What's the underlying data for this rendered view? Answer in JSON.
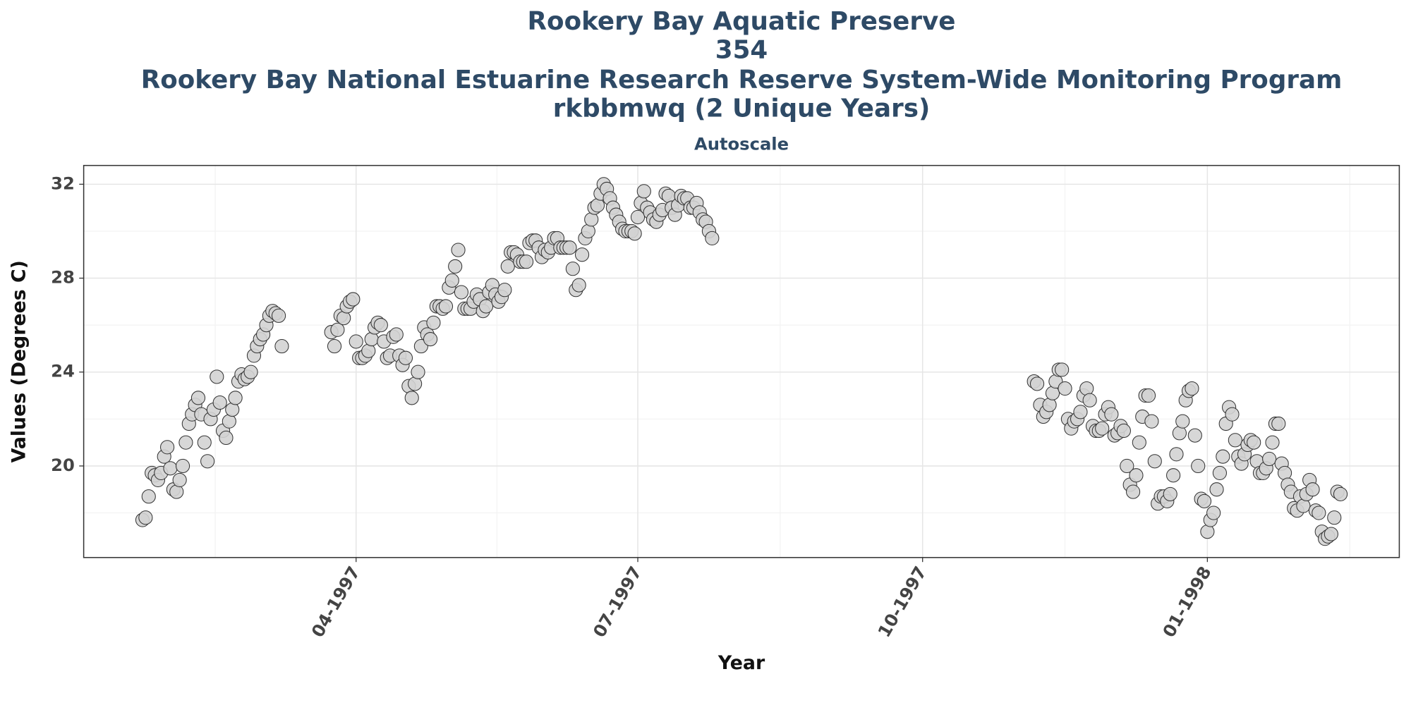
{
  "chart_data": {
    "type": "scatter",
    "title": [
      "Rookery Bay Aquatic Preserve",
      "354",
      "Rookery Bay National Estuarine Research Reserve System-Wide Monitoring Program",
      "rkbbmwq (2 Unique Years)"
    ],
    "subtitle": "Autoscale",
    "x_label": "Year",
    "y_label": "Values (Degrees C)",
    "color": "#d3d3d3",
    "grid": true,
    "xlim": [
      9864,
      10289
    ],
    "xticks": [
      {
        "value": 9952,
        "label": "04-1997"
      },
      {
        "value": 10043,
        "label": "07-1997"
      },
      {
        "value": 10135,
        "label": "10-1997"
      },
      {
        "value": 10227,
        "label": "01-1998"
      }
    ],
    "ylim": [
      16.1,
      32.8
    ],
    "yticks": [
      20,
      24,
      28,
      32
    ],
    "x": [
      9883,
      9884,
      9885,
      9886,
      9887,
      9888,
      9889,
      9890,
      9891,
      9892,
      9893,
      9894,
      9895,
      9896,
      9897,
      9898,
      9899,
      9900,
      9901,
      9902,
      9903,
      9904,
      9905,
      9906,
      9907,
      9908,
      9909,
      9910,
      9911,
      9912,
      9913,
      9914,
      9915,
      9916,
      9917,
      9918,
      9919,
      9920,
      9921,
      9922,
      9923,
      9924,
      9925,
      9926,
      9927,
      9928,
      9944,
      9945,
      9946,
      9947,
      9948,
      9949,
      9950,
      9951,
      9952,
      9953,
      9954,
      9955,
      9956,
      9957,
      9958,
      9959,
      9960,
      9961,
      9962,
      9963,
      9964,
      9965,
      9966,
      9967,
      9968,
      9969,
      9970,
      9971,
      9972,
      9973,
      9974,
      9975,
      9976,
      9977,
      9978,
      9979,
      9980,
      9981,
      9982,
      9983,
      9984,
      9985,
      9986,
      9987,
      9988,
      9989,
      9990,
      9991,
      9992,
      9993,
      9994,
      9995,
      9996,
      9997,
      9998,
      9999,
      10000,
      10001,
      10002,
      10003,
      10004,
      10005,
      10006,
      10007,
      10008,
      10009,
      10010,
      10011,
      10012,
      10013,
      10014,
      10015,
      10016,
      10017,
      10018,
      10019,
      10020,
      10021,
      10022,
      10023,
      10024,
      10025,
      10026,
      10027,
      10028,
      10029,
      10030,
      10031,
      10032,
      10033,
      10034,
      10035,
      10036,
      10037,
      10038,
      10039,
      10040,
      10041,
      10042,
      10043,
      10044,
      10045,
      10046,
      10047,
      10048,
      10049,
      10050,
      10051,
      10052,
      10053,
      10054,
      10055,
      10056,
      10057,
      10058,
      10059,
      10060,
      10061,
      10062,
      10063,
      10064,
      10065,
      10066,
      10067,
      10171,
      10172,
      10173,
      10174,
      10175,
      10176,
      10177,
      10178,
      10179,
      10180,
      10181,
      10182,
      10183,
      10184,
      10185,
      10186,
      10187,
      10188,
      10189,
      10190,
      10191,
      10192,
      10193,
      10194,
      10195,
      10196,
      10197,
      10198,
      10199,
      10200,
      10201,
      10202,
      10203,
      10204,
      10205,
      10206,
      10207,
      10208,
      10209,
      10210,
      10211,
      10212,
      10213,
      10214,
      10215,
      10216,
      10217,
      10218,
      10219,
      10220,
      10221,
      10222,
      10223,
      10224,
      10225,
      10226,
      10227,
      10228,
      10229,
      10230,
      10231,
      10232,
      10233,
      10234,
      10235,
      10236,
      10237,
      10238,
      10239,
      10240,
      10241,
      10242,
      10243,
      10244,
      10245,
      10246,
      10247,
      10248,
      10249,
      10250,
      10251,
      10252,
      10253,
      10254,
      10255,
      10256,
      10257,
      10258,
      10259,
      10260,
      10261,
      10262,
      10263,
      10264,
      10265,
      10266,
      10267,
      10268,
      10269,
      10270
    ],
    "values": [
      17.7,
      17.8,
      18.7,
      19.7,
      19.6,
      19.4,
      19.7,
      20.4,
      20.8,
      19.9,
      19.0,
      18.9,
      19.4,
      20.0,
      21.0,
      21.8,
      22.2,
      22.6,
      22.9,
      22.2,
      21.0,
      20.2,
      22.0,
      22.4,
      23.8,
      22.7,
      21.5,
      21.2,
      21.9,
      22.4,
      22.9,
      23.6,
      23.9,
      23.7,
      23.8,
      24.0,
      24.7,
      25.1,
      25.4,
      25.6,
      26.0,
      26.4,
      26.6,
      26.5,
      26.4,
      25.1,
      25.7,
      25.1,
      25.8,
      26.4,
      26.3,
      26.8,
      27.0,
      27.1,
      25.3,
      24.6,
      24.6,
      24.7,
      24.9,
      25.4,
      25.9,
      26.1,
      26.0,
      25.3,
      24.6,
      24.7,
      25.5,
      25.6,
      24.7,
      24.3,
      24.6,
      23.4,
      22.9,
      23.5,
      24.0,
      25.1,
      25.9,
      25.6,
      25.4,
      26.1,
      26.8,
      26.8,
      26.7,
      26.8,
      27.6,
      27.9,
      28.5,
      29.2,
      27.4,
      26.7,
      26.7,
      26.7,
      27.0,
      27.3,
      27.1,
      26.6,
      26.8,
      27.4,
      27.7,
      27.3,
      27.0,
      27.2,
      27.5,
      28.5,
      29.1,
      29.1,
      29.0,
      28.7,
      28.7,
      28.7,
      29.5,
      29.6,
      29.6,
      29.3,
      28.9,
      29.2,
      29.1,
      29.3,
      29.7,
      29.7,
      29.3,
      29.3,
      29.3,
      29.3,
      28.4,
      27.5,
      27.7,
      29.0,
      29.7,
      30.0,
      30.5,
      31.0,
      31.1,
      31.6,
      32.0,
      31.8,
      31.4,
      31.0,
      30.7,
      30.4,
      30.1,
      30.0,
      30.0,
      30.0,
      29.9,
      30.6,
      31.2,
      31.7,
      31.0,
      30.8,
      30.5,
      30.4,
      30.7,
      30.9,
      31.6,
      31.5,
      31.0,
      30.7,
      31.1,
      31.5,
      31.4,
      31.4,
      31.0,
      31.0,
      31.2,
      30.8,
      30.5,
      30.4,
      30.0,
      29.7,
      23.6,
      23.5,
      22.6,
      22.1,
      22.3,
      22.6,
      23.1,
      23.6,
      24.1,
      24.1,
      23.3,
      22.0,
      21.6,
      21.9,
      22.0,
      22.3,
      23.0,
      23.3,
      22.8,
      21.7,
      21.5,
      21.5,
      21.6,
      22.2,
      22.5,
      22.2,
      21.3,
      21.4,
      21.7,
      21.5,
      20.0,
      19.2,
      18.9,
      19.6,
      21.0,
      22.1,
      23.0,
      23.0,
      21.9,
      20.2,
      18.4,
      18.7,
      18.7,
      18.5,
      18.8,
      19.6,
      20.5,
      21.4,
      21.9,
      22.8,
      23.2,
      23.3,
      21.3,
      20.0,
      18.6,
      18.5,
      17.2,
      17.7,
      18.0,
      19.0,
      19.7,
      20.4,
      21.8,
      22.5,
      22.2,
      21.1,
      20.4,
      20.1,
      20.5,
      20.9,
      21.1,
      21.0,
      20.2,
      19.7,
      19.7,
      19.9,
      20.3,
      21.0,
      21.8,
      21.8,
      20.1,
      19.7,
      19.2,
      18.9,
      18.2,
      18.1,
      18.7,
      18.3,
      18.8,
      19.4,
      19.0,
      18.1,
      18.0,
      17.2,
      16.9,
      17.0,
      17.1,
      17.8,
      18.9,
      18.8
    ]
  }
}
